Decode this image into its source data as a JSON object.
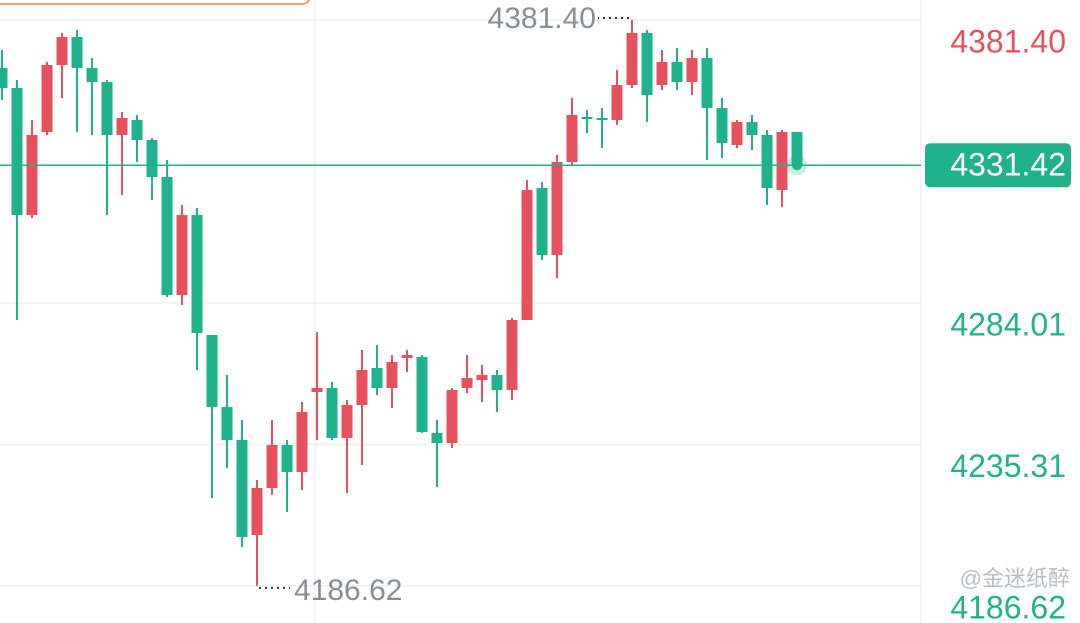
{
  "chart_data": {
    "type": "candlestick",
    "up_color": "#e5525e",
    "down_color": "#1fb28c",
    "open": [
      4364.88,
      4357.99,
      4314.28,
      4342.85,
      4365.91,
      4375.55,
      4364.88,
      4360.06,
      4341.82,
      4346.98,
      4340.1,
      4327.36,
      4286.74,
      4314.28,
      4272.98,
      4248.19,
      4236.83,
      4204.14,
      4220.31,
      4235.11,
      4225.82,
      4253.36,
      4254.73,
      4237.52,
      4248.88,
      4261.62,
      4254.73,
      4265.06,
      4265.4,
      4239.25,
      4235.8,
      4254.73,
      4257.49,
      4259.21,
      4254.04,
      4278.14,
      4323.58,
      4300.51,
      4332.52,
      4348.01,
      4347.67,
      4346.98,
      4359.03,
      4376.92,
      4359.03,
      4366.94,
      4360.06,
      4368.32,
      4351.11,
      4338.37,
      4346.29,
      4341.82,
      4322.89,
      4342.85
    ],
    "high": [
      4371.07,
      4360.75,
      4346.98,
      4366.94,
      4376.92,
      4377.95,
      4368.32,
      4360.75,
      4349.73,
      4348.7,
      4340.78,
      4333.21,
      4317.72,
      4316.69,
      4272.98,
      4259.21,
      4243.72,
      4223.07,
      4243.72,
      4236.83,
      4249.92,
      4274.01,
      4256.8,
      4250.6,
      4267.81,
      4269.54,
      4266.09,
      4267.81,
      4266.09,
      4243.72,
      4254.73,
      4266.09,
      4262.65,
      4260.93,
      4278.83,
      4326.33,
      4325.64,
      4334.93,
      4354.55,
      4350.42,
      4351.11,
      4364.19,
      4381.4,
      4377.95,
      4371.07,
      4371.76,
      4371.07,
      4371.76,
      4354.55,
      4346.98,
      4348.7,
      4343.54,
      4343.54,
      4342.85
    ],
    "low": [
      4353.86,
      4278.14,
      4313.25,
      4341.82,
      4354.55,
      4342.85,
      4341.82,
      4314.28,
      4321.17,
      4332.52,
      4319.45,
      4286.06,
      4283.3,
      4260.93,
      4216.87,
      4227.2,
      4200.0,
      4186.62,
      4217.9,
      4212.05,
      4219.63,
      4236.83,
      4236.83,
      4218.59,
      4228.23,
      4252.33,
      4247.85,
      4260.24,
      4239.25,
      4220.66,
      4234.08,
      4253.01,
      4249.92,
      4246.47,
      4250.6,
      4278.14,
      4298.79,
      4292.6,
      4331.49,
      4342.5,
      4337.34,
      4345.26,
      4357.99,
      4346.29,
      4357.3,
      4357.3,
      4355.58,
      4333.21,
      4333.9,
      4337.34,
      4336.65,
      4317.72,
      4317.03,
      4331.42
    ],
    "close": [
      4357.99,
      4314.28,
      4341.82,
      4365.91,
      4375.55,
      4364.88,
      4360.06,
      4341.82,
      4347.67,
      4340.1,
      4327.36,
      4286.74,
      4314.28,
      4273.67,
      4248.19,
      4236.83,
      4203.45,
      4220.31,
      4235.11,
      4225.82,
      4246.47,
      4254.73,
      4237.52,
      4248.88,
      4260.93,
      4254.73,
      4263.68,
      4266.09,
      4239.59,
      4235.8,
      4254.04,
      4258.17,
      4259.21,
      4254.04,
      4278.14,
      4322.89,
      4300.51,
      4332.52,
      4348.7,
      4347.67,
      4346.98,
      4359.03,
      4376.92,
      4355.58,
      4366.94,
      4360.06,
      4368.32,
      4351.11,
      4339.06,
      4346.29,
      4341.82,
      4323.58,
      4342.85,
      4331.42
    ],
    "ylim": [
      4173.85,
      4388.28
    ],
    "yticks": [
      {
        "value": 4381.4,
        "label": "4381.40"
      },
      4284.01,
      4235.31,
      4186.62
    ],
    "grid": true,
    "last_price": {
      "value": 4331.42,
      "label": "4331.42"
    },
    "annotations": [
      {
        "text": "4381.40"
      },
      {
        "text": "4186.62"
      }
    ],
    "watermark": "@金迷纸醉"
  }
}
